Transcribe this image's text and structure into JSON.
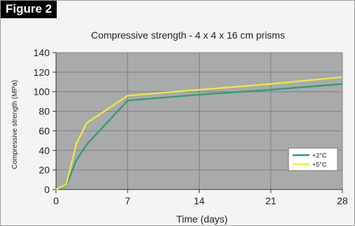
{
  "figure_label": "Figure 2",
  "chart_data": {
    "type": "line",
    "title": "Compressive strength - 4 x 4 x 16 cm prisms",
    "xlabel": "Time (days)",
    "ylabel": "Compressive strength (MPa)",
    "xlim": [
      0,
      28
    ],
    "ylim": [
      0,
      140
    ],
    "xticks": [
      0,
      7,
      14,
      21,
      28
    ],
    "yticks": [
      0,
      20,
      40,
      60,
      80,
      100,
      120,
      140
    ],
    "grid": true,
    "legend_position": "bottom-right",
    "series": [
      {
        "name": "+2°C",
        "color": "#2a9d6e",
        "x": [
          0,
          1,
          2,
          3,
          7,
          14,
          21,
          28
        ],
        "y": [
          0,
          4,
          30,
          46,
          91,
          97,
          102,
          108
        ]
      },
      {
        "name": "+5°C",
        "color": "#f2ea3a",
        "x": [
          0,
          1,
          2,
          3,
          7,
          14,
          21,
          28
        ],
        "y": [
          0,
          5,
          47,
          68,
          96,
          102,
          108,
          115
        ]
      }
    ]
  }
}
